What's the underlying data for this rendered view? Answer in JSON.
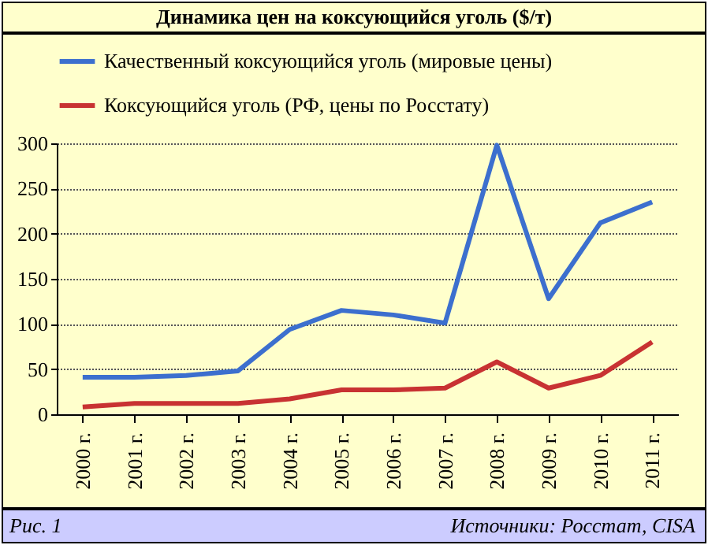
{
  "chart_data": {
    "type": "line",
    "title": "Динамика цен на коксующийся уголь ($/т)",
    "categories": [
      "2000 г.",
      "2001 г.",
      "2002 г.",
      "2003 г.",
      "2004 г.",
      "2005 г.",
      "2006 г.",
      "2007 г.",
      "2008 г.",
      "2009 г.",
      "2010 г.",
      "2011 г."
    ],
    "series": [
      {
        "name": "Качественный коксующийся уголь (мировые цены)",
        "color": "#3c6fce",
        "values": [
          41,
          41,
          43,
          48,
          94,
          115,
          110,
          101,
          298,
          128,
          212,
          235
        ]
      },
      {
        "name": "Коксующийся уголь (РФ, цены по Росстату)",
        "color": "#c83232",
        "values": [
          8,
          12,
          12,
          12,
          17,
          27,
          27,
          29,
          58,
          29,
          43,
          80
        ]
      }
    ],
    "ylim": [
      0,
      300
    ],
    "yticks": [
      0,
      50,
      100,
      150,
      200,
      250,
      300
    ],
    "grid": "y",
    "legend": "top",
    "annotations": [
      "Рис. 1",
      "Источники: Росстат, CISA"
    ]
  }
}
